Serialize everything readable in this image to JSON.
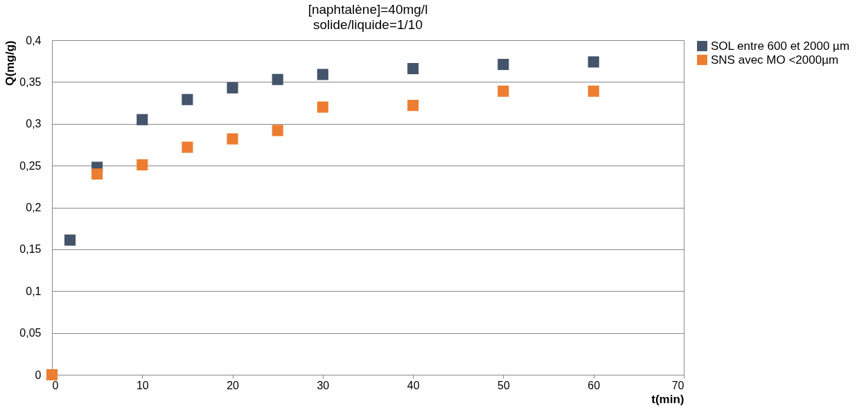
{
  "chart_data": {
    "type": "scatter",
    "title": "[naphtalène]=40mg/l",
    "subtitle": "solide/liquide=1/10",
    "xlabel": "t(min)",
    "ylabel": "Q(mg/g)",
    "x": [
      0,
      5,
      10,
      15,
      20,
      25,
      30,
      40,
      50,
      60
    ],
    "series": [
      {
        "name": "SOL  entre 600 et 2000 µm",
        "color": "#44546a",
        "x": [
          2,
          5,
          10,
          15,
          20,
          25,
          30,
          40,
          50,
          60
        ],
        "values": [
          0.161,
          0.248,
          0.305,
          0.329,
          0.343,
          0.353,
          0.359,
          0.366,
          0.371,
          0.374
        ]
      },
      {
        "name": "SNS avec MO <2000µm",
        "color": "#ed7d31",
        "values": [
          0,
          0.24,
          0.251,
          0.272,
          0.282,
          0.292,
          0.32,
          0.322,
          0.339,
          0.339
        ]
      }
    ],
    "xlim": [
      0,
      70
    ],
    "xticks": [
      0,
      10,
      20,
      30,
      40,
      50,
      60,
      70
    ],
    "ylim": [
      0,
      0.4
    ],
    "yticks": [
      0,
      {
        "value": 0.05,
        "label": "0,05"
      },
      {
        "value": 0.1,
        "label": "0,1"
      },
      {
        "value": 0.15,
        "label": "0,15"
      },
      {
        "value": 0.2,
        "label": "0,2"
      },
      {
        "value": 0.25,
        "label": "0,25"
      },
      {
        "value": 0.3,
        "label": "0,3"
      },
      {
        "value": 0.35,
        "label": "0,35"
      },
      {
        "value": 0.4,
        "label": "0,4"
      }
    ],
    "grid": "y",
    "legend": "right",
    "marker": "square"
  }
}
